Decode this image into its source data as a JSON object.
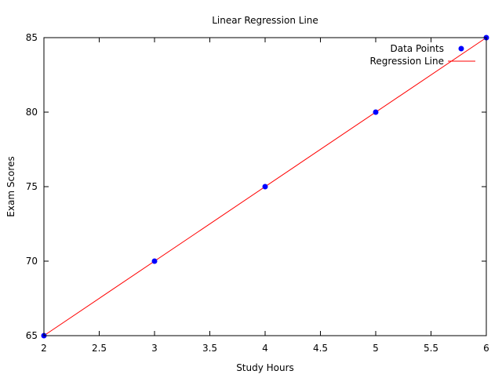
{
  "chart_data": {
    "type": "scatter",
    "title": "Linear Regression Line",
    "xlabel": "Study Hours",
    "ylabel": "Exam Scores",
    "xlim": [
      2,
      6
    ],
    "ylim": [
      65,
      85
    ],
    "x_ticks": [
      2,
      2.5,
      3,
      3.5,
      4,
      4.5,
      5,
      5.5,
      6
    ],
    "x_tick_labels": [
      "2",
      "2.5",
      "3",
      "3.5",
      "4",
      "4.5",
      "5",
      "5.5",
      "6"
    ],
    "y_ticks": [
      65,
      70,
      75,
      80,
      85
    ],
    "y_tick_labels": [
      "65",
      "70",
      "75",
      "80",
      "85"
    ],
    "grid": false,
    "legend_position": "top-right",
    "series": [
      {
        "name": "Data Points",
        "type": "scatter",
        "color": "#0000ff",
        "x": [
          2,
          3,
          4,
          5,
          6
        ],
        "y": [
          65,
          70,
          75,
          80,
          85
        ]
      },
      {
        "name": "Regression Line",
        "type": "line",
        "color": "#ff0000",
        "x": [
          2,
          6
        ],
        "y": [
          65,
          85
        ]
      }
    ]
  }
}
